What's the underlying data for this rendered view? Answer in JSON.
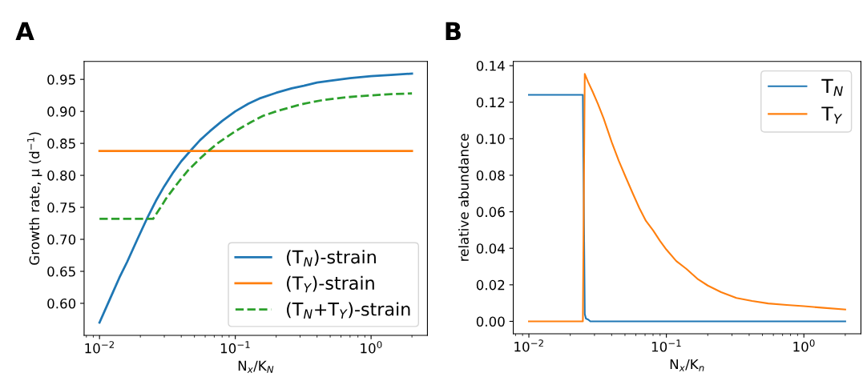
{
  "chart_data": [
    {
      "type": "line",
      "title": "A",
      "xlabel": "N$_{x}$/K$_{N}$",
      "ylabel": "Growth rate, μ (d$^{−1}$)",
      "log": "x",
      "xlim": [
        0.0077,
        2.6
      ],
      "ylim": [
        0.55,
        0.978
      ],
      "xticks": [
        {
          "value": 0.01,
          "label": "10$^{−2}$"
        },
        {
          "value": 0.1,
          "label": "10$^{−1}$"
        },
        {
          "value": 1,
          "label": "10$^{0}$"
        }
      ],
      "yticks": [
        {
          "value": 0.6,
          "label": "0.60"
        },
        {
          "value": 0.65,
          "label": "0.65"
        },
        {
          "value": 0.7,
          "label": "0.70"
        },
        {
          "value": 0.75,
          "label": "0.75"
        },
        {
          "value": 0.8,
          "label": "0.80"
        },
        {
          "value": 0.85,
          "label": "0.85"
        },
        {
          "value": 0.9,
          "label": "0.90"
        },
        {
          "value": 0.95,
          "label": "0.95"
        }
      ],
      "grid": false,
      "legend": "bottom right",
      "series": [
        {
          "name": "(T$_{N}$)-strain",
          "color": "#1f77b4",
          "line_style": "solid",
          "x": [
            0.01,
            0.012,
            0.014,
            0.016,
            0.019,
            0.0222,
            0.026,
            0.03,
            0.035,
            0.04,
            0.0461,
            0.055,
            0.065,
            0.08,
            0.1,
            0.125,
            0.15,
            0.2,
            0.26,
            0.32,
            0.4,
            0.5,
            0.7,
            1,
            1.4,
            2
          ],
          "values": [
            0.57,
            0.608,
            0.64,
            0.665,
            0.7,
            0.731,
            0.76,
            0.783,
            0.805,
            0.822,
            0.837,
            0.855,
            0.869,
            0.885,
            0.9,
            0.912,
            0.92,
            0.929,
            0.936,
            0.94,
            0.945,
            0.948,
            0.952,
            0.955,
            0.957,
            0.959
          ]
        },
        {
          "name": "(T$_{Y}$)-strain",
          "color": "#ff7f0e",
          "line_style": "solid",
          "x": [
            0.01,
            2
          ],
          "values": [
            0.838,
            0.838
          ]
        },
        {
          "name": "(T$_{N}$+T$_{Y}$)-strain",
          "color": "#2ca02c",
          "line_style": "dashed",
          "x": [
            0.01,
            0.0248,
            0.028,
            0.031,
            0.035,
            0.039,
            0.045,
            0.053,
            0.0625,
            0.075,
            0.1,
            0.13,
            0.16,
            0.2,
            0.26,
            0.32,
            0.45,
            0.65,
            1,
            1.4,
            2
          ],
          "values": [
            0.732,
            0.732,
            0.749,
            0.764,
            0.779,
            0.792,
            0.808,
            0.823,
            0.837,
            0.851,
            0.869,
            0.883,
            0.893,
            0.9,
            0.907,
            0.912,
            0.918,
            0.922,
            0.925,
            0.927,
            0.928
          ]
        }
      ]
    },
    {
      "type": "line",
      "title": "B",
      "xlabel": "N$_{x}$/K$_{n}$",
      "ylabel": "relative abundance",
      "log": "x",
      "xlim": [
        0.0077,
        2.6
      ],
      "ylim": [
        -0.0068,
        0.1423
      ],
      "xticks": [
        {
          "value": 0.01,
          "label": "10$^{−2}$"
        },
        {
          "value": 0.1,
          "label": "10$^{−1}$"
        },
        {
          "value": 1,
          "label": "10$^{0}$"
        }
      ],
      "yticks": [
        {
          "value": 0.0,
          "label": "0.00"
        },
        {
          "value": 0.02,
          "label": "0.02"
        },
        {
          "value": 0.04,
          "label": "0.04"
        },
        {
          "value": 0.06,
          "label": "0.06"
        },
        {
          "value": 0.08,
          "label": "0.08"
        },
        {
          "value": 0.1,
          "label": "0.10"
        },
        {
          "value": 0.12,
          "label": "0.12"
        },
        {
          "value": 0.14,
          "label": "0.14"
        }
      ],
      "grid": false,
      "legend": "top right",
      "series": [
        {
          "name": "T$_{N}$",
          "color": "#1f77b4",
          "line_style": "solid",
          "x": [
            0.01,
            0.0247,
            0.0255,
            0.026,
            0.027,
            0.028,
            2
          ],
          "values": [
            0.124,
            0.124,
            0.004,
            0.0015,
            0.001,
            0.0,
            0.0
          ]
        },
        {
          "name": "T$_{Y}$",
          "color": "#ff7f0e",
          "line_style": "solid",
          "x": [
            0.01,
            0.0247,
            0.0255,
            0.027,
            0.029,
            0.0318,
            0.035,
            0.0401,
            0.045,
            0.0506,
            0.057,
            0.0636,
            0.071,
            0.0801,
            0.09,
            0.1,
            0.118,
            0.14,
            0.17,
            0.2,
            0.25,
            0.323,
            0.42,
            0.55,
            0.75,
            1,
            1.4,
            2
          ],
          "values": [
            0.0,
            0.0,
            0.1355,
            0.131,
            0.126,
            0.119,
            0.111,
            0.098,
            0.088,
            0.079,
            0.07,
            0.062,
            0.055,
            0.0498,
            0.044,
            0.0393,
            0.033,
            0.0287,
            0.023,
            0.0196,
            0.016,
            0.0128,
            0.0112,
            0.0098,
            0.009,
            0.0083,
            0.0074,
            0.0065
          ]
        }
      ]
    }
  ]
}
